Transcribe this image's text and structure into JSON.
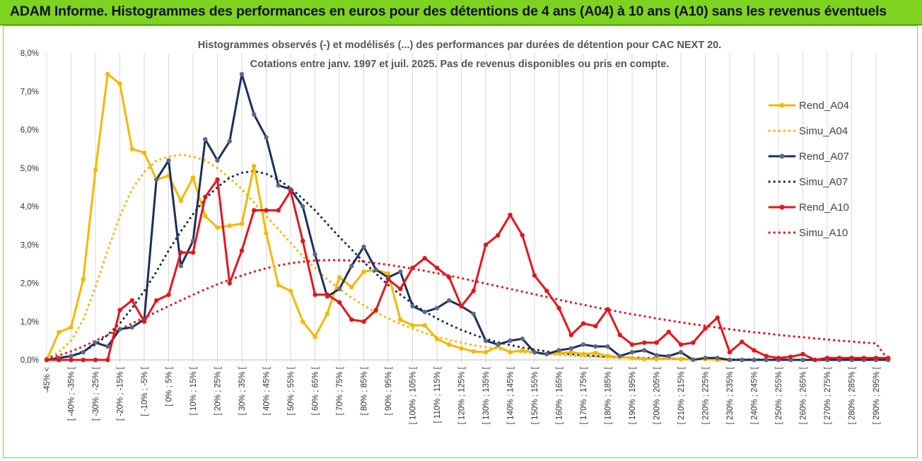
{
  "page": {
    "title": "ADAM Informe. Histogrammes des performances en euros pour des détentions de 4 ans (A04) à 10 ans (A10) sans les revenus éventuels",
    "header_color": "#7ed321"
  },
  "chart_data": {
    "type": "line",
    "title": "Histogrammes observés (-) et modélisés (...) des performances par durées de détention pour CAC NEXT 20.",
    "subtitle": "Cotations entre janv. 1997 et juil. 2025. Pas de revenus disponibles ou pris en compte.",
    "xlabel": "",
    "ylabel": "",
    "ylim": [
      0,
      8
    ],
    "y_ticks": [
      "0,0%",
      "1,0%",
      "2,0%",
      "3,0%",
      "4,0%",
      "5,0%",
      "6,0%",
      "7,0%",
      "8,0%"
    ],
    "grid": "vertical",
    "legend_position": "right",
    "categories": [
      "-45% <",
      "[ -45% ; -40% [",
      "[ -40% ; -35% [",
      "[ -35% ; -30% [",
      "[ -30% ; -25% [",
      "[ -25% ; -20% [",
      "[ -20% ; -15% [",
      "[ -15% ; -10% [",
      "[ -10% ; -5% [",
      "[ -5% ; 0% [",
      "[ 0% ; 5% [",
      "[ 5% ; 10% [",
      "[ 10% ; 15% [",
      "[ 15% ; 20% [",
      "[ 20% ; 25% [",
      "[ 25% ; 30% [",
      "[ 30% ; 35% [",
      "[ 35% ; 40% [",
      "[ 40% ; 45% [",
      "[ 45% ; 50% [",
      "[ 50% ; 55% [",
      "[ 55% ; 60% [",
      "[ 60% ; 65% [",
      "[ 65% ; 70% [",
      "[ 70% ; 75% [",
      "[ 75% ; 80% [",
      "[ 80% ; 85% [",
      "[ 85% ; 90% [",
      "[ 90% ; 95% [",
      "[ 95% ; 100% [",
      "[ 100% ; 105% [",
      "[ 105% ; 110% [",
      "[ 110% ; 115% [",
      "[ 115% ; 120% [",
      "[ 120% ; 125% [",
      "[ 125% ; 130% [",
      "[ 130% ; 135% [",
      "[ 135% ; 140% [",
      "[ 140% ; 145% [",
      "[ 145% ; 150% [",
      "[ 150% ; 155% [",
      "[ 155% ; 160% [",
      "[ 160% ; 165% [",
      "[ 165% ; 170% [",
      "[ 170% ; 175% [",
      "[ 175% ; 180% [",
      "[ 180% ; 185% [",
      "[ 185% ; 190% [",
      "[ 190% ; 195% [",
      "[ 195% ; 200% [",
      "[ 200% ; 205% [",
      "[ 205% ; 210% [",
      "[ 210% ; 215% [",
      "[ 215% ; 220% [",
      "[ 220% ; 225% [",
      "[ 225% ; 230% [",
      "[ 230% ; 235% [",
      "[ 235% ; 240% [",
      "[ 240% ; 245% [",
      "[ 245% ; 250% [",
      "[ 250% ; 255% [",
      "[ 255% ; 260% [",
      "[ 260% ; 265% [",
      "[ 265% ; 270% [",
      "[ 270% ; 275% [",
      "[ 275% ; 280% [",
      "[ 280% ; 285% [",
      "[ 285% ; 290% [",
      "[ 290% ; 295% [",
      "[ 295% ; 300% ["
    ],
    "x_tick_labels": [
      "-45% <",
      "[ -40% ; -35% [",
      "[ -30% ; -25% [",
      "[ -20% ; -15% [",
      "[ -10% ; -5% [",
      "[ 0% ; 5% [",
      "[ 10% ; 15% [",
      "[ 20% ; 25% [",
      "[ 30% ; 35% [",
      "[ 40% ; 45% [",
      "[ 50% ; 55% [",
      "[ 60% ; 65% [",
      "[ 70% ; 75% [",
      "[ 80% ; 85% [",
      "[ 90% ; 95% [",
      "[ 100% ; 105% [",
      "[ 110% ; 115% [",
      "[ 120% ; 125% [",
      "[ 130% ; 135% [",
      "[ 140% ; 145% [",
      "[ 150% ; 155% [",
      "[ 160% ; 165% [",
      "[ 170% ; 175% [",
      "[ 180% ; 185% [",
      "[ 190% ; 195% [",
      "[ 200% ; 205% [",
      "[ 210% ; 215% [",
      "[ 220% ; 225% [",
      "[ 230% ; 235% [",
      "[ 240% ; 245% [",
      "[ 250% ; 255% [",
      "[ 260% ; 265% [",
      "[ 270% ; 275% [",
      "[ 280% ; 285% [",
      "[ 290% ; 295% ["
    ],
    "series": [
      {
        "name": "Rend_A04",
        "style": "solid",
        "color": "#f5b800",
        "values": [
          0,
          0.72,
          0.85,
          2.1,
          4.95,
          7.45,
          7.2,
          5.5,
          5.4,
          4.7,
          4.8,
          4.15,
          4.75,
          3.75,
          3.45,
          3.5,
          3.55,
          5.05,
          3.3,
          1.95,
          1.8,
          1.0,
          0.6,
          1.2,
          2.15,
          1.9,
          2.3,
          2.35,
          2.25,
          1.05,
          0.9,
          0.9,
          0.55,
          0.4,
          0.3,
          0.22,
          0.2,
          0.35,
          0.2,
          0.25,
          0.2,
          0.15,
          0.18,
          0.2,
          0.15,
          0.18,
          0.1,
          0.08,
          0.05,
          0.02,
          0.02,
          0.05,
          0.02,
          0.01,
          0.02,
          0,
          0,
          0,
          0,
          0,
          0,
          0,
          0,
          0,
          0,
          0,
          0,
          0,
          0,
          0
        ]
      },
      {
        "name": "Simu_A04",
        "style": "dotted",
        "color": "#f5b800",
        "values": [
          0.05,
          0.2,
          0.5,
          1.05,
          1.9,
          2.85,
          3.75,
          4.45,
          4.9,
          5.2,
          5.3,
          5.35,
          5.3,
          5.2,
          5.0,
          4.75,
          4.45,
          4.1,
          3.75,
          3.4,
          3.05,
          2.7,
          2.4,
          2.1,
          1.85,
          1.62,
          1.42,
          1.24,
          1.08,
          0.94,
          0.82,
          0.7,
          0.6,
          0.52,
          0.45,
          0.38,
          0.33,
          0.28,
          0.24,
          0.2,
          0.17,
          0.15,
          0.13,
          0.11,
          0.09,
          0.08,
          0.07,
          0.06,
          0.05,
          0.04,
          0.04,
          0.03,
          0.03,
          0.02,
          0.02,
          0.02,
          0.01,
          0.01,
          0.01,
          0.01,
          0.01,
          0.01,
          0,
          0,
          0,
          0,
          0,
          0,
          0,
          0
        ]
      },
      {
        "name": "Rend_A07",
        "style": "solid",
        "color": "#1b2f5e",
        "values": [
          0,
          0.05,
          0.1,
          0.2,
          0.45,
          0.35,
          0.8,
          0.85,
          1.05,
          4.7,
          5.2,
          2.45,
          3.1,
          5.75,
          5.2,
          5.7,
          7.45,
          6.4,
          5.8,
          4.55,
          4.45,
          4.0,
          2.75,
          1.65,
          1.85,
          2.45,
          2.95,
          2.35,
          2.15,
          2.3,
          1.4,
          1.25,
          1.35,
          1.55,
          1.4,
          1.2,
          0.5,
          0.4,
          0.5,
          0.55,
          0.2,
          0.15,
          0.25,
          0.3,
          0.4,
          0.35,
          0.35,
          0.1,
          0.2,
          0.25,
          0.12,
          0.1,
          0.2,
          0,
          0.05,
          0.05,
          0,
          0,
          0,
          0,
          0,
          0,
          0,
          0,
          0,
          0,
          0,
          0,
          0,
          0
        ]
      },
      {
        "name": "Simu_A07",
        "style": "dotted",
        "color": "#1b2f5e",
        "values": [
          0,
          0.05,
          0.1,
          0.22,
          0.4,
          0.65,
          0.95,
          1.35,
          1.8,
          2.3,
          2.85,
          3.35,
          3.8,
          4.2,
          4.5,
          4.75,
          4.88,
          4.92,
          4.85,
          4.7,
          4.48,
          4.2,
          3.9,
          3.55,
          3.2,
          2.88,
          2.55,
          2.25,
          1.95,
          1.7,
          1.47,
          1.26,
          1.08,
          0.92,
          0.78,
          0.66,
          0.55,
          0.46,
          0.39,
          0.32,
          0.27,
          0.22,
          0.18,
          0.15,
          0.12,
          0.1,
          0.08,
          0.07,
          0.06,
          0.05,
          0.04,
          0.03,
          0.03,
          0.02,
          0.02,
          0.02,
          0.01,
          0.01,
          0.01,
          0.01,
          0.01,
          0,
          0,
          0,
          0,
          0,
          0,
          0,
          0,
          0
        ]
      },
      {
        "name": "Rend_A10",
        "style": "solid",
        "color": "#e8141b",
        "values": [
          0,
          0,
          0,
          0,
          0,
          0,
          1.3,
          1.55,
          1.0,
          1.55,
          1.7,
          2.8,
          2.8,
          4.25,
          4.7,
          2.0,
          2.85,
          3.9,
          3.9,
          3.9,
          4.4,
          3.1,
          1.7,
          1.7,
          1.5,
          1.05,
          1.0,
          1.3,
          2.1,
          1.85,
          2.4,
          2.65,
          2.4,
          2.15,
          1.4,
          1.8,
          3.0,
          3.25,
          3.78,
          3.25,
          2.2,
          1.8,
          1.35,
          0.65,
          0.95,
          0.88,
          1.32,
          0.65,
          0.4,
          0.45,
          0.45,
          0.73,
          0.4,
          0.45,
          0.82,
          1.1,
          0.2,
          0.47,
          0.25,
          0.1,
          0.05,
          0.08,
          0.15,
          0,
          0.05,
          0.05,
          0.05,
          0.05,
          0.05,
          0.05
        ]
      },
      {
        "name": "Simu_A10",
        "style": "dotted",
        "color": "#e8141b",
        "values": [
          0.05,
          0.12,
          0.22,
          0.35,
          0.5,
          0.65,
          0.8,
          0.95,
          1.1,
          1.25,
          1.4,
          1.55,
          1.7,
          1.84,
          1.97,
          2.09,
          2.2,
          2.3,
          2.39,
          2.46,
          2.52,
          2.56,
          2.59,
          2.6,
          2.6,
          2.59,
          2.56,
          2.52,
          2.48,
          2.43,
          2.38,
          2.32,
          2.26,
          2.2,
          2.13,
          2.06,
          1.99,
          1.92,
          1.85,
          1.78,
          1.71,
          1.64,
          1.57,
          1.5,
          1.44,
          1.37,
          1.31,
          1.25,
          1.19,
          1.14,
          1.08,
          1.03,
          0.98,
          0.93,
          0.89,
          0.84,
          0.8,
          0.76,
          0.72,
          0.69,
          0.65,
          0.62,
          0.59,
          0.56,
          0.53,
          0.5,
          0.48,
          0.45,
          0.43,
          0.0
        ]
      }
    ]
  }
}
